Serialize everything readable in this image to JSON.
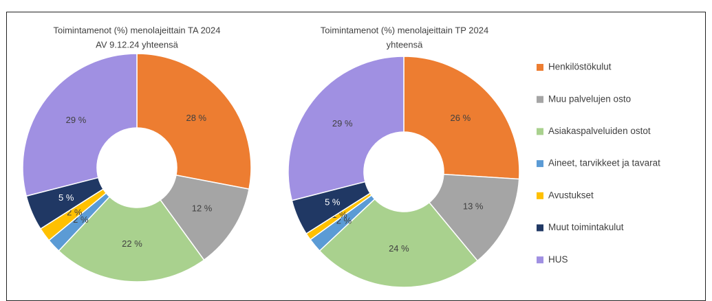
{
  "chart_data": [
    {
      "type": "donut",
      "title": [
        "Toimintamenot (%) menolajeittain TA 2024",
        "AV 9.12.24 yhteensä"
      ],
      "categories": [
        "Henkilöstökulut",
        "Muu palvelujen osto",
        "Asiakaspalveluiden ostot",
        "Aineet, tarvikkeet ja tavarat",
        "Avustukset",
        "Muut toimintakulut",
        "HUS"
      ],
      "values": [
        28,
        12,
        22,
        2,
        2,
        5,
        29
      ],
      "value_labels": [
        "28 %",
        "12 %",
        "22 %",
        "2 %",
        "2 %",
        "5 %",
        "29 %"
      ],
      "colors": [
        "#ED7D31",
        "#A5A5A5",
        "#A9D18E",
        "#5B9BD5",
        "#FFC000",
        "#203864",
        "#A090E2"
      ],
      "legend": "right"
    },
    {
      "type": "donut",
      "title": [
        "Toimintamenot (%) menolajeittain TP 2024",
        "yhteensä"
      ],
      "categories": [
        "Henkilöstökulut",
        "Muu palvelujen osto",
        "Asiakaspalveluiden ostot",
        "Aineet, tarvikkeet ja tavarat",
        "Avustukset",
        "Muut toimintakulut",
        "HUS"
      ],
      "values": [
        26,
        13,
        24,
        2,
        1,
        5,
        29
      ],
      "value_labels": [
        "26 %",
        "13 %",
        "24 %",
        "2 %",
        "1 %",
        "5 %",
        "29 %"
      ],
      "colors": [
        "#ED7D31",
        "#A5A5A5",
        "#A9D18E",
        "#5B9BD5",
        "#FFC000",
        "#203864",
        "#A090E2"
      ]
    }
  ]
}
